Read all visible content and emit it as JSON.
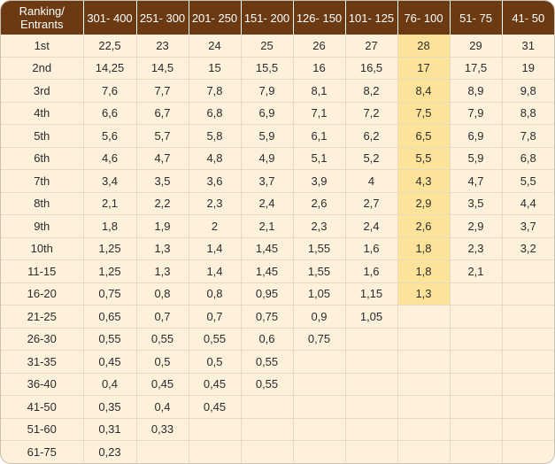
{
  "table": {
    "headers": [
      "Ranking/\nEntrants",
      "301- 400",
      "251- 300",
      "201- 250",
      "151- 200",
      "126- 150",
      "101- 125",
      "76- 100",
      "51- 75",
      "41- 50"
    ],
    "highlight_column": 7,
    "highlight_color": "#fde29a",
    "header_color": "#6b3a12",
    "rows": [
      [
        "1st",
        "22,5",
        "23",
        "24",
        "25",
        "26",
        "27",
        "28",
        "29",
        "31"
      ],
      [
        "2nd",
        "14,25",
        "14,5",
        "15",
        "15,5",
        "16",
        "16,5",
        "17",
        "17,5",
        "19"
      ],
      [
        "3rd",
        "7,6",
        "7,7",
        "7,8",
        "7,9",
        "8,1",
        "8,2",
        "8,4",
        "8,9",
        "9,8"
      ],
      [
        "4th",
        "6,6",
        "6,7",
        "6,8",
        "6,9",
        "7,1",
        "7,2",
        "7,5",
        "7,9",
        "8,8"
      ],
      [
        "5th",
        "5,6",
        "5,7",
        "5,8",
        "5,9",
        "6,1",
        "6,2",
        "6,5",
        "6,9",
        "7,8"
      ],
      [
        "6th",
        "4,6",
        "4,7",
        "4,8",
        "4,9",
        "5,1",
        "5,2",
        "5,5",
        "5,9",
        "6,8"
      ],
      [
        "7th",
        "3,4",
        "3,5",
        "3,6",
        "3,7",
        "3,9",
        "4",
        "4,3",
        "4,7",
        "5,5"
      ],
      [
        "8th",
        "2,1",
        "2,2",
        "2,3",
        "2,4",
        "2,6",
        "2,7",
        "2,9",
        "3,5",
        "4,4"
      ],
      [
        "9th",
        "1,8",
        "1,9",
        "2",
        "2,1",
        "2,3",
        "2,4",
        "2,6",
        "2,9",
        "3,7"
      ],
      [
        "10th",
        "1,25",
        "1,3",
        "1,4",
        "1,45",
        "1,55",
        "1,6",
        "1,8",
        "2,3",
        "3,2"
      ],
      [
        "11-15",
        "1,25",
        "1,3",
        "1,4",
        "1,45",
        "1,55",
        "1,6",
        "1,8",
        "2,1",
        ""
      ],
      [
        "16-20",
        "0,75",
        "0,8",
        "0,8",
        "0,95",
        "1,05",
        "1,15",
        "1,3",
        "",
        ""
      ],
      [
        "21-25",
        "0,65",
        "0,7",
        "0,7",
        "0,75",
        "0,9",
        "1,05",
        "",
        "",
        ""
      ],
      [
        "26-30",
        "0,55",
        "0,55",
        "0,55",
        "0,6",
        "0,75",
        "",
        "",
        "",
        ""
      ],
      [
        "31-35",
        "0,45",
        "0,5",
        "0,5",
        "0,55",
        "",
        "",
        "",
        "",
        ""
      ],
      [
        "36-40",
        "0,4",
        "0,45",
        "0,45",
        "0,55",
        "",
        "",
        "",
        "",
        ""
      ],
      [
        "41-50",
        "0,35",
        "0,4",
        "0,45",
        "",
        "",
        "",
        "",
        "",
        ""
      ],
      [
        "51-60",
        "0,31",
        "0,33",
        "",
        "",
        "",
        "",
        "",
        "",
        ""
      ],
      [
        "61-75",
        "0,23",
        "",
        "",
        "",
        "",
        "",
        "",
        "",
        ""
      ]
    ]
  }
}
